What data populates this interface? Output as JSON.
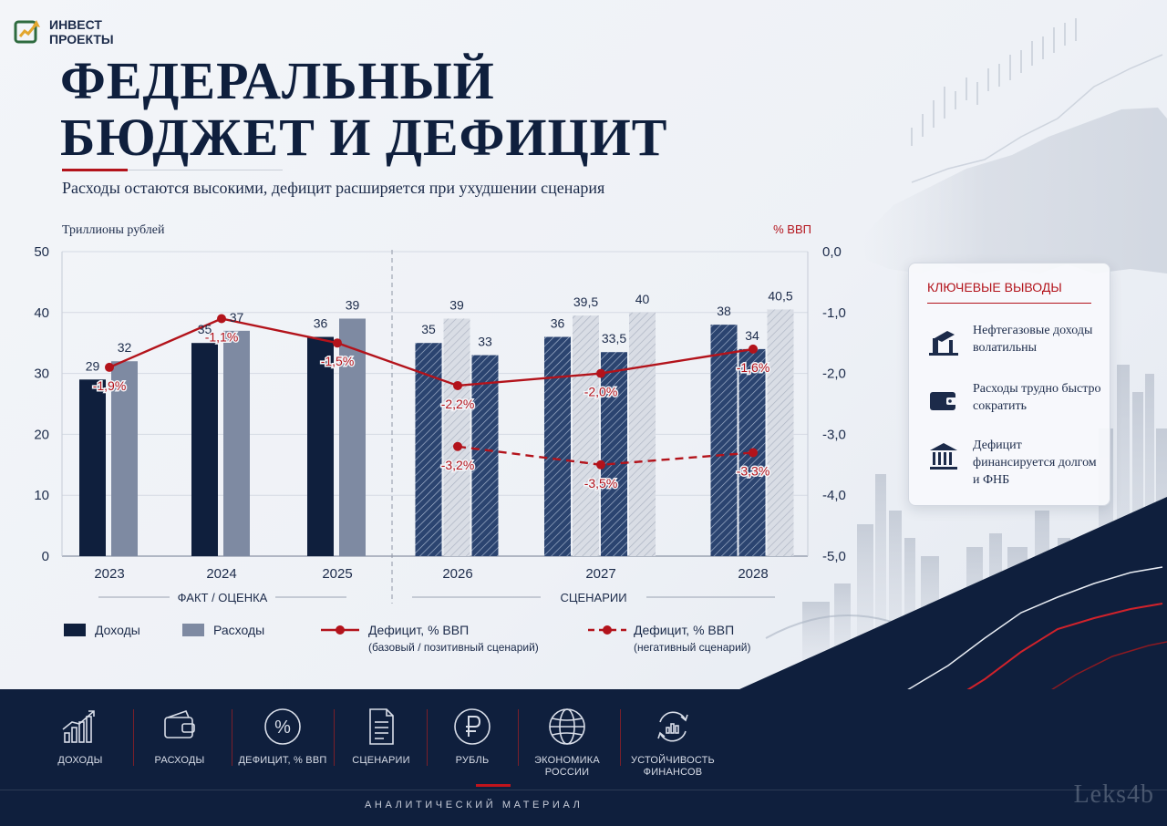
{
  "logo": {
    "line1": "ИНВЕСТ",
    "line2": "ПРОЕКТЫ"
  },
  "title": {
    "line1": "ФЕДЕРАЛЬНЫЙ",
    "line2": "БЮДЖЕТ И ДЕФИЦИТ"
  },
  "subtitle": "Расходы остаются высокими, дефицит расширяется при ухудшении сценария",
  "colors": {
    "revenue": "#0f1f3d",
    "expense": "#7e8aa2",
    "deficit": "#b3131b",
    "scenario_revenue": "#2b4470",
    "scenario_expense": "#c3c9d4"
  },
  "chart_data": {
    "type": "bar",
    "left_axis_label": "Триллионы рублей",
    "right_axis_label": "% ВВП",
    "left_ylim": [
      0,
      50
    ],
    "left_ticks": [
      "0",
      "10",
      "20",
      "30",
      "40",
      "50"
    ],
    "right_ylim": [
      -5.0,
      0.0
    ],
    "right_ticks": [
      "0,0",
      "-1,0",
      "-2,0",
      "-3,0",
      "-4,0",
      "-5,0"
    ],
    "categories": [
      "2023",
      "2024",
      "2025",
      "2026",
      "2027",
      "2028"
    ],
    "groups": [
      {
        "label": "ФАКТ / ОЦЕНКА",
        "years": [
          "2023",
          "2024",
          "2025"
        ]
      },
      {
        "label": "СЦЕНАРИИ",
        "years": [
          "2026",
          "2027",
          "2028"
        ]
      }
    ],
    "bars": [
      {
        "year": "2023",
        "series": "Доходы",
        "value": 29,
        "label": "29",
        "style": "solid"
      },
      {
        "year": "2023",
        "series": "Расходы",
        "value": 32,
        "label": "32",
        "style": "solid"
      },
      {
        "year": "2024",
        "series": "Доходы",
        "value": 35,
        "label": "35",
        "style": "solid"
      },
      {
        "year": "2024",
        "series": "Расходы",
        "value": 37,
        "label": "37",
        "style": "solid"
      },
      {
        "year": "2025",
        "series": "Доходы",
        "value": 36,
        "label": "36",
        "style": "solid"
      },
      {
        "year": "2025",
        "series": "Расходы",
        "value": 39,
        "label": "39",
        "style": "solid"
      },
      {
        "year": "2026",
        "series": "Доходы",
        "value": 35,
        "label": "35",
        "style": "hatched"
      },
      {
        "year": "2026",
        "series": "Расходы",
        "value": 39,
        "label": "39",
        "style": "hatched"
      },
      {
        "year": "2026",
        "series": "Доходы",
        "value": 33,
        "label": "33",
        "style": "hatched"
      },
      {
        "year": "2027",
        "series": "Доходы",
        "value": 36,
        "label": "36",
        "style": "hatched"
      },
      {
        "year": "2027",
        "series": "Расходы",
        "value": 39.5,
        "label": "39,5",
        "style": "hatched"
      },
      {
        "year": "2027",
        "series": "Доходы",
        "value": 33.5,
        "label": "33,5",
        "style": "hatched"
      },
      {
        "year": "2027",
        "series": "Расходы",
        "value": 40,
        "label": "40",
        "style": "hatched"
      },
      {
        "year": "2028",
        "series": "Доходы",
        "value": 38,
        "label": "38",
        "style": "hatched"
      },
      {
        "year": "2028",
        "series": "Доходы",
        "value": 34,
        "label": "34",
        "style": "hatched"
      },
      {
        "year": "2028",
        "series": "Расходы",
        "value": 40.5,
        "label": "40,5",
        "style": "hatched"
      }
    ],
    "lines": [
      {
        "name": "Дефицит, % ВВП",
        "note": "(базовый / позитивный сценарий)",
        "style": "solid",
        "points": [
          {
            "year": "2023",
            "value": -1.9,
            "label": "-1,9%"
          },
          {
            "year": "2024",
            "value": -1.1,
            "label": "-1,1%"
          },
          {
            "year": "2025",
            "value": -1.5,
            "label": "-1,5%"
          },
          {
            "year": "2026",
            "value": -2.2,
            "label": "-2,2%"
          },
          {
            "year": "2027",
            "value": -2.0,
            "label": "-2,0%"
          },
          {
            "year": "2028",
            "value": -1.6,
            "label": "-1,6%"
          }
        ]
      },
      {
        "name": "Дефицит, % ВВП",
        "note": "(негативный сценарий)",
        "style": "dashed",
        "points": [
          {
            "year": "2026",
            "value": -3.2,
            "label": "-3,2%"
          },
          {
            "year": "2027",
            "value": -3.5,
            "label": "-3,5%"
          },
          {
            "year": "2028",
            "value": -3.3,
            "label": "-3,3%"
          }
        ]
      }
    ],
    "legend": [
      {
        "label": "Доходы",
        "kind": "box",
        "color": "#0f1f3d"
      },
      {
        "label": "Расходы",
        "kind": "box",
        "color": "#7e8aa2"
      },
      {
        "label": "Дефицит, % ВВП",
        "note": "(базовый / позитивный сценарий)",
        "kind": "line-solid",
        "color": "#b3131b"
      },
      {
        "label": "Дефицит, % ВВП",
        "note": "(негативный сценарий)",
        "kind": "line-dashed",
        "color": "#b3131b"
      }
    ]
  },
  "key_points": {
    "title": "КЛЮЧЕВЫЕ ВЫВОДЫ",
    "items": [
      {
        "icon": "oil-pump-icon",
        "text": "Нефтегазовые доходы волатильны"
      },
      {
        "icon": "wallet-icon",
        "text": "Расходы трудно быстро сократить"
      },
      {
        "icon": "bank-building-icon",
        "text": "Дефицит финансируется долгом и ФНБ"
      }
    ]
  },
  "footer": {
    "items": [
      {
        "icon": "bar-growth-icon",
        "label": "ДОХОДЫ"
      },
      {
        "icon": "wallet-icon",
        "label": "РАСХОДЫ"
      },
      {
        "icon": "percent-icon",
        "label": "ДЕФИЦИТ, % ВВП"
      },
      {
        "icon": "document-icon",
        "label": "СЦЕНАРИИ"
      },
      {
        "icon": "ruble-icon",
        "label": "РУБЛЬ"
      },
      {
        "icon": "globe-icon",
        "label": "ЭКОНОМИКА РОССИИ"
      },
      {
        "icon": "cycle-chart-icon",
        "label": "УСТОЙЧИВОСТЬ ФИНАНСОВ"
      }
    ],
    "caption": "АНАЛИТИЧЕСКИЙ МАТЕРИАЛ",
    "watermark": "Leks4b"
  }
}
